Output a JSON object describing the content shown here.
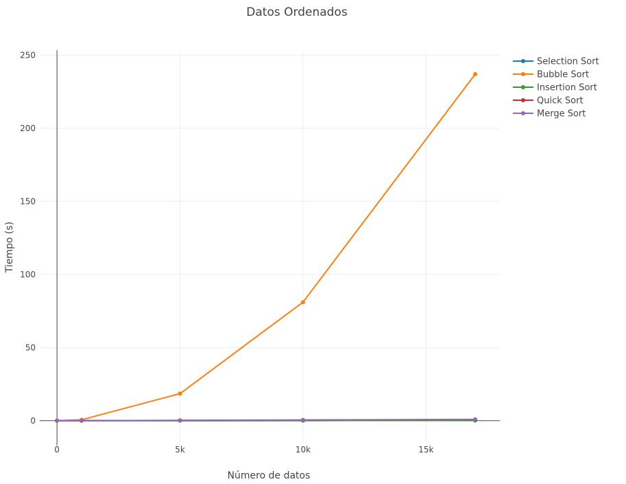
{
  "chart_data": {
    "type": "line",
    "title": "Datos Ordenados",
    "xlabel": "Número de datos",
    "ylabel": "Tiempo (s)",
    "xlim": [
      -700,
      18000
    ],
    "ylim": [
      -17,
      252
    ],
    "x_ticks": [
      0,
      5000,
      10000,
      15000
    ],
    "x_tick_labels": [
      "0",
      "5k",
      "10k",
      "15k"
    ],
    "y_ticks": [
      0,
      50,
      100,
      150,
      200,
      250
    ],
    "y_tick_labels": [
      "0",
      "50",
      "100",
      "150",
      "200",
      "250"
    ],
    "grid": true,
    "legend_position": "top-right",
    "x": [
      0,
      1000,
      5000,
      10000,
      17000
    ],
    "series": [
      {
        "name": "Selection Sort",
        "color": "#1f77b4",
        "values": [
          0,
          0.01,
          0.05,
          0.1,
          0.2
        ]
      },
      {
        "name": "Bubble Sort",
        "color": "#ff7f0e",
        "values": [
          0,
          0.6,
          18.5,
          81,
          237
        ]
      },
      {
        "name": "Insertion Sort",
        "color": "#2ca02c",
        "values": [
          0,
          0.01,
          0.05,
          0.1,
          0.2
        ]
      },
      {
        "name": "Quick Sort",
        "color": "#d62728",
        "values": [
          0,
          0.02,
          0.2,
          0.4,
          0.8
        ]
      },
      {
        "name": "Merge Sort",
        "color": "#9467bd",
        "values": [
          0,
          0.02,
          0.25,
          0.5,
          0.9
        ]
      }
    ]
  }
}
